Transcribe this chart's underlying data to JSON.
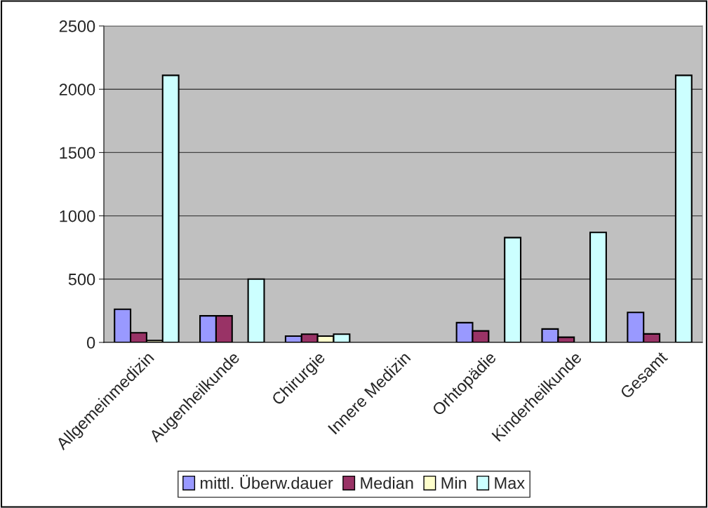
{
  "chart_data": {
    "type": "bar",
    "categories": [
      "Allgemeinmedizin",
      "Augenheilkunde",
      "Chirurgie",
      "Innere Medizin",
      "Orhtopädie",
      "Kinderheilkunde",
      "Gesamt"
    ],
    "series": [
      {
        "name": "mittl. Überw.dauer",
        "color": "#9999ff",
        "values": [
          262,
          210,
          50,
          null,
          156,
          106,
          237
        ]
      },
      {
        "name": "Median",
        "color": "#993366",
        "values": [
          76,
          210,
          65,
          null,
          91,
          41,
          67
        ]
      },
      {
        "name": "Min",
        "color": "#ffffcc",
        "values": [
          15,
          null,
          50,
          null,
          null,
          null,
          null
        ]
      },
      {
        "name": "Max",
        "color": "#ccffff",
        "values": [
          2110,
          500,
          65,
          null,
          828,
          869,
          2110
        ]
      }
    ],
    "ylim": [
      0,
      2500
    ],
    "yticks": [
      0,
      500,
      1000,
      1500,
      2000,
      2500
    ],
    "grid": "y",
    "legend": "bottom"
  }
}
